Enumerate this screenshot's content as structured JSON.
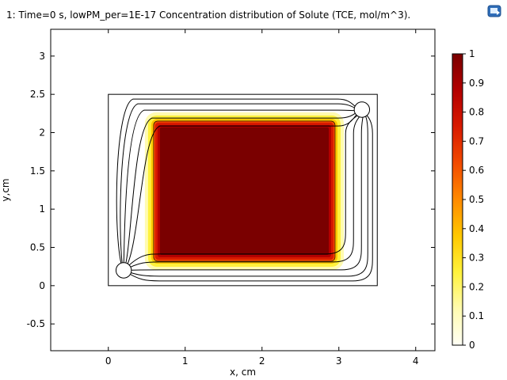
{
  "title": "1: Time=0 s, lowPM_per=1E-17  Concentration distribution of Solute (TCE, mol/m^3).",
  "toolbar": {
    "export_icon": "export-icon"
  },
  "chart_data": {
    "type": "heatmap",
    "title": "1: Time=0 s, lowPM_per=1E-17  Concentration distribution of Solute (TCE, mol/m^3).",
    "xlabel": "x, cm",
    "ylabel": "y,cm",
    "xlim": [
      -0.75,
      4.25
    ],
    "ylim": [
      -0.85,
      3.35
    ],
    "xticks": [
      "0",
      "1",
      "2",
      "3",
      "4"
    ],
    "xtick_values": [
      0,
      1,
      2,
      3,
      4
    ],
    "yticks": [
      "-0.5",
      "0",
      "0.5",
      "1",
      "1.5",
      "2",
      "2.5",
      "3"
    ],
    "ytick_values": [
      -0.5,
      0,
      0.5,
      1,
      1.5,
      2,
      2.5,
      3
    ],
    "domain": {
      "xmin": 0,
      "xmax": 3.5,
      "ymin": 0,
      "ymax": 2.5
    },
    "source_region": {
      "xmin": 0.62,
      "xmax": 2.92,
      "ymin": 0.35,
      "ymax": 2.12,
      "value": 1
    },
    "circles": [
      {
        "x": 0.2,
        "y": 0.2,
        "r": 0.1
      },
      {
        "x": 3.3,
        "y": 2.3,
        "r": 0.1
      }
    ],
    "colorbar": {
      "min": 0,
      "max": 1,
      "tick_labels": [
        "1",
        "0.9",
        "0.8",
        "0.7",
        "0.6",
        "0.5",
        "0.4",
        "0.3",
        "0.2",
        "0.1",
        "0"
      ],
      "tick_values": [
        1,
        0.9,
        0.8,
        0.7,
        0.6,
        0.5,
        0.4,
        0.3,
        0.2,
        0.1,
        0
      ],
      "colormap": [
        "#fffff5",
        "#fffbb0",
        "#fff23c",
        "#ffc800",
        "#ff8a00",
        "#f24a00",
        "#d81a00",
        "#b30000",
        "#7a0000"
      ]
    },
    "grid": false
  }
}
